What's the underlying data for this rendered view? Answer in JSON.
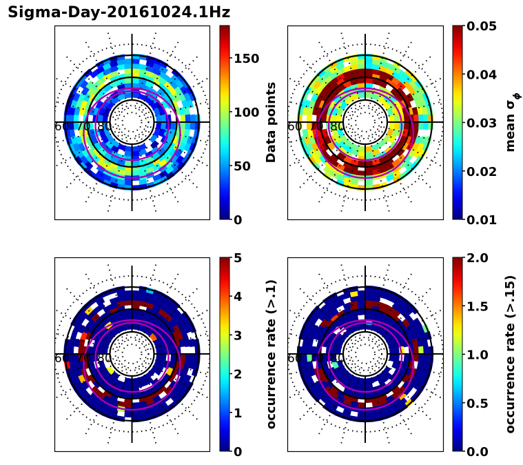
{
  "title": "Sigma-Day-20161024.1Hz",
  "chart_data": [
    {
      "type": "heatmap",
      "projection": "polar (magnetic latitude / MLT)",
      "panel": "top-left",
      "lat_ring_labels": [
        "60",
        "70",
        "80"
      ],
      "colormap": "jet",
      "colorbar": {
        "label": "Data points",
        "range": [
          0,
          180
        ],
        "ticks": [
          0,
          50,
          100,
          150
        ]
      },
      "dominant_values": "mostly 20-100 (blue to green), few near 130-180",
      "overlay": "two magenta auroral oval boundaries"
    },
    {
      "type": "heatmap",
      "projection": "polar (magnetic latitude / MLT)",
      "panel": "top-right",
      "lat_ring_labels": [
        "60",
        "70",
        "80"
      ],
      "colormap": "jet",
      "colorbar": {
        "label": "mean σφ",
        "range": [
          0.01,
          0.05
        ],
        "ticks": [
          0.01,
          0.02,
          0.03,
          0.04,
          0.05
        ]
      },
      "dominant_values": "outer ring 0.025-0.035, inner oval 0.04-0.05 (saturated)",
      "overlay": "two magenta auroral oval boundaries"
    },
    {
      "type": "heatmap",
      "projection": "polar (magnetic latitude / MLT)",
      "panel": "bottom-left",
      "lat_ring_labels": [
        "60",
        "70",
        "80"
      ],
      "colormap": "jet",
      "colorbar": {
        "label": "occurrence rate (>.1)",
        "range": [
          0,
          5
        ],
        "ticks": [
          0,
          1,
          2,
          3,
          4,
          5
        ]
      },
      "dominant_values": "mostly 0, band of 5 (saturated) inside oval, sparse 2-4",
      "overlay": "two magenta auroral oval boundaries"
    },
    {
      "type": "heatmap",
      "projection": "polar (magnetic latitude / MLT)",
      "panel": "bottom-right",
      "lat_ring_labels": [
        "60",
        "70",
        "80"
      ],
      "colormap": "jet",
      "colorbar": {
        "label": "occurrence rate (>.15)",
        "range": [
          0.0,
          2.0
        ],
        "ticks": [
          "0.0",
          "0.5",
          "1.0",
          "1.5",
          "2.0"
        ]
      },
      "dominant_values": "mostly 0, band of 2.0 (saturated) inside oval, sparse 1.0-1.6",
      "overlay": "two magenta auroral oval boundaries"
    }
  ],
  "panels": [
    {
      "cb_label": "Data points",
      "ticks": [
        "0",
        "50",
        "100",
        "150"
      ],
      "tick_vals": [
        0,
        50,
        100,
        150
      ],
      "vmin": 0,
      "vmax": 180,
      "scheme": "count"
    },
    {
      "cb_label": "mean σ",
      "cb_sub": "ϕ",
      "ticks": [
        "0.01",
        "0.02",
        "0.03",
        "0.04",
        "0.05"
      ],
      "tick_vals": [
        0.01,
        0.02,
        0.03,
        0.04,
        0.05
      ],
      "vmin": 0.01,
      "vmax": 0.05,
      "scheme": "sigma"
    },
    {
      "cb_label": "occurrence rate (>.1)",
      "ticks": [
        "0",
        "1",
        "2",
        "3",
        "4",
        "5"
      ],
      "tick_vals": [
        0,
        1,
        2,
        3,
        4,
        5
      ],
      "vmin": 0,
      "vmax": 5,
      "scheme": "occ"
    },
    {
      "cb_label": "occurrence rate (>.15)",
      "ticks": [
        "0.0",
        "0.5",
        "1.0",
        "1.5",
        "2.0"
      ],
      "tick_vals": [
        0,
        0.5,
        1.0,
        1.5,
        2.0
      ],
      "vmin": 0,
      "vmax": 2,
      "scheme": "occ"
    }
  ],
  "lat_labels": [
    "60",
    "70",
    "80"
  ],
  "colors": {
    "oval": "#b000b0",
    "grid": "#000000"
  }
}
